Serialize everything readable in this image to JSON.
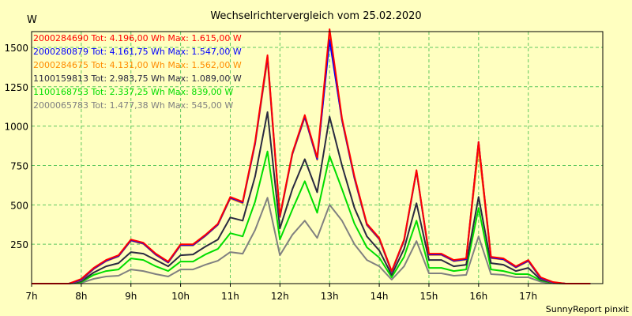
{
  "chart_data": {
    "type": "line",
    "title": "Wechselrichtervergleich vom 25.02.2020",
    "ylabel": "W",
    "xlabel": "",
    "footer": "SunnyReport pinxit",
    "ylim": [
      0,
      1600
    ],
    "xlim": [
      7.0,
      18.5
    ],
    "grid": true,
    "yticks": [
      250,
      500,
      750,
      1000,
      1250,
      1500
    ],
    "xticks": [
      7,
      8,
      9,
      10,
      11,
      12,
      13,
      14,
      15,
      16,
      17
    ],
    "xtick_labels": [
      "7h",
      "8h",
      "9h",
      "10h",
      "11h",
      "12h",
      "13h",
      "14h",
      "15h",
      "16h",
      "17h"
    ],
    "x": [
      7.0,
      7.25,
      7.5,
      7.75,
      8.0,
      8.25,
      8.5,
      8.75,
      9.0,
      9.25,
      9.5,
      9.75,
      10.0,
      10.25,
      10.5,
      10.75,
      11.0,
      11.25,
      11.5,
      11.75,
      12.0,
      12.25,
      12.5,
      12.75,
      13.0,
      13.25,
      13.5,
      13.75,
      14.0,
      14.25,
      14.5,
      14.75,
      15.0,
      15.25,
      15.5,
      15.75,
      16.0,
      16.25,
      16.5,
      16.75,
      17.0,
      17.25,
      17.5,
      17.75,
      18.0,
      18.25
    ],
    "series": [
      {
        "name": "2000284690",
        "label": "2000284690 Tot: 4.196,00 Wh Max: 1.615,00 W",
        "color": "#ff0000",
        "values": [
          0,
          0,
          0,
          0,
          30,
          100,
          150,
          180,
          280,
          260,
          190,
          140,
          250,
          250,
          310,
          380,
          550,
          520,
          900,
          1450,
          430,
          830,
          1070,
          800,
          1615,
          1050,
          680,
          380,
          290,
          80,
          280,
          720,
          190,
          190,
          150,
          160,
          900,
          170,
          160,
          110,
          150,
          40,
          10,
          0,
          0,
          0
        ]
      },
      {
        "name": "2000280879",
        "label": "2000280879 Tot: 4.161,75 Wh Max: 1.547,00 W",
        "color": "#0000ff",
        "values": [
          0,
          0,
          0,
          0,
          25,
          95,
          145,
          175,
          275,
          255,
          185,
          135,
          245,
          245,
          305,
          375,
          545,
          515,
          890,
          1440,
          425,
          825,
          1060,
          790,
          1547,
          1040,
          670,
          375,
          285,
          75,
          275,
          715,
          185,
          185,
          145,
          155,
          900,
          165,
          155,
          105,
          145,
          35,
          8,
          0,
          0,
          0
        ]
      },
      {
        "name": "2000284675",
        "label": "2000284675 Tot: 4.131,00 Wh Max: 1.562,00 W",
        "color": "#ff8c00",
        "values": [
          0,
          0,
          0,
          0,
          22,
          92,
          142,
          172,
          272,
          252,
          182,
          132,
          242,
          242,
          302,
          372,
          540,
          510,
          885,
          1420,
          420,
          820,
          1055,
          785,
          1562,
          1035,
          665,
          370,
          280,
          72,
          272,
          712,
          182,
          182,
          142,
          152,
          860,
          162,
          152,
          102,
          142,
          32,
          6,
          0,
          0,
          0
        ]
      },
      {
        "name": "1100159813",
        "label": "1100159813 Tot: 2.983,75 Wh Max: 1.089,00 W",
        "color": "#2a2a40",
        "values": [
          0,
          0,
          0,
          0,
          15,
          70,
          110,
          130,
          200,
          190,
          150,
          110,
          180,
          185,
          235,
          280,
          420,
          400,
          680,
          1089,
          350,
          600,
          790,
          580,
          1060,
          750,
          480,
          300,
          210,
          55,
          220,
          510,
          150,
          150,
          110,
          120,
          550,
          130,
          120,
          80,
          100,
          25,
          5,
          0,
          0,
          0
        ]
      },
      {
        "name": "1100168753",
        "label": "1100168753 Tot: 2.337,25 Wh Max: 839,00 W",
        "color": "#00dd00",
        "values": [
          0,
          0,
          0,
          0,
          10,
          55,
          80,
          90,
          160,
          150,
          110,
          80,
          140,
          140,
          185,
          220,
          320,
          300,
          520,
          839,
          280,
          470,
          650,
          450,
          810,
          600,
          380,
          230,
          165,
          40,
          170,
          400,
          100,
          100,
          80,
          90,
          480,
          90,
          80,
          60,
          60,
          20,
          3,
          0,
          0,
          0
        ]
      },
      {
        "name": "2000065783",
        "label": "2000065783 Tot: 1.477,38 Wh Max: 545,00 W",
        "color": "#808080",
        "values": [
          0,
          0,
          0,
          0,
          5,
          30,
          45,
          50,
          90,
          80,
          60,
          45,
          90,
          90,
          120,
          145,
          200,
          190,
          340,
          545,
          180,
          310,
          400,
          290,
          500,
          400,
          250,
          150,
          110,
          25,
          110,
          270,
          65,
          65,
          50,
          55,
          300,
          60,
          55,
          40,
          40,
          12,
          2,
          0,
          0,
          0
        ]
      }
    ]
  }
}
